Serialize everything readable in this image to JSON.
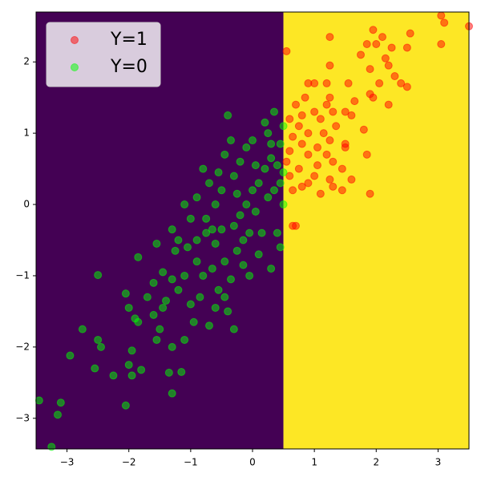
{
  "chart_data": {
    "type": "scatter",
    "decision_boundary": 0.5,
    "region_colors": [
      "#440154",
      "#fde725"
    ],
    "xlim": [
      -3.5,
      3.5
    ],
    "ylim": [
      -3.43,
      2.7
    ],
    "xticks": [
      {
        "value": -3,
        "label": "−3"
      },
      {
        "value": -2,
        "label": "−2"
      },
      {
        "value": -1,
        "label": "−1"
      },
      0,
      1,
      2,
      3
    ],
    "yticks": [
      {
        "value": -3,
        "label": "−3"
      },
      {
        "value": -2,
        "label": "−2"
      },
      {
        "value": -1,
        "label": "−1"
      },
      0,
      1,
      2
    ],
    "legend": "upper left",
    "alpha": 0.5,
    "series": [
      {
        "name": "Y=1",
        "color": "#ff0000",
        "x": [
          3.05,
          3.1,
          3.5,
          2.55,
          1.95,
          2.1,
          1.25,
          0.55,
          1.85,
          2.0,
          2.25,
          2.5,
          3.05,
          2.15,
          2.2,
          1.9,
          1.75,
          1.25,
          2.3,
          2.05,
          2.4,
          2.5,
          1.0,
          1.2,
          0.9,
          1.55,
          1.9,
          1.95,
          2.2,
          1.25,
          0.85,
          1.65,
          0.7,
          1.2,
          1.0,
          1.3,
          1.5,
          0.8,
          1.1,
          1.6,
          0.6,
          0.75,
          1.35,
          1.8,
          0.9,
          1.15,
          0.65,
          1.25,
          1.5,
          0.8,
          1.05,
          1.5,
          0.6,
          0.9,
          1.2,
          1.85,
          0.55,
          1.05,
          1.3,
          0.75,
          1.45,
          0.6,
          1.0,
          1.25,
          0.9,
          1.6,
          0.65,
          1.3,
          1.45,
          1.9,
          0.8,
          0.7,
          0.65,
          1.1
        ],
        "values": [
          2.65,
          2.55,
          2.5,
          2.4,
          2.45,
          2.35,
          2.35,
          2.15,
          2.25,
          2.25,
          2.2,
          2.2,
          2.25,
          2.05,
          1.95,
          1.9,
          2.1,
          1.95,
          1.8,
          1.7,
          1.7,
          1.65,
          1.7,
          1.7,
          1.7,
          1.7,
          1.55,
          1.5,
          1.4,
          1.5,
          1.5,
          1.45,
          1.4,
          1.4,
          1.3,
          1.3,
          1.3,
          1.25,
          1.2,
          1.25,
          1.2,
          1.1,
          1.1,
          1.05,
          1.0,
          1.0,
          0.95,
          0.9,
          0.85,
          0.85,
          0.8,
          0.8,
          0.75,
          0.7,
          0.7,
          0.7,
          0.6,
          0.55,
          0.6,
          0.5,
          0.5,
          0.4,
          0.4,
          0.35,
          0.3,
          0.35,
          0.2,
          0.25,
          0.2,
          0.15,
          0.25,
          -0.3,
          -0.3,
          0.15
        ]
      },
      {
        "name": "Y=0",
        "color": "#00ff00",
        "x": [
          -3.45,
          -3.25,
          -3.1,
          -3.15,
          -2.95,
          -2.75,
          -2.55,
          -2.5,
          -2.45,
          -2.5,
          -2.25,
          -2.05,
          -2.0,
          -1.95,
          -2.0,
          -2.05,
          -1.95,
          -1.9,
          -1.85,
          -1.8,
          -1.85,
          -1.7,
          -1.6,
          -1.55,
          -1.5,
          -1.45,
          -1.4,
          -1.3,
          -1.3,
          -1.35,
          -1.3,
          -1.25,
          -1.2,
          -1.15,
          -1.1,
          -1.1,
          -1.3,
          -1.0,
          -0.95,
          -0.9,
          -0.85,
          -0.8,
          -0.75,
          -0.7,
          -0.65,
          -0.6,
          -0.55,
          -0.5,
          -0.45,
          -0.4,
          -0.35,
          -0.3,
          -0.25,
          -0.2,
          -0.15,
          -0.1,
          -0.05,
          0.0,
          0.05,
          0.1,
          0.15,
          0.2,
          0.25,
          0.3,
          0.35,
          0.4,
          0.45,
          0.45,
          0.5,
          0.5,
          0.45,
          0.3,
          0.35,
          0.25,
          -0.1,
          -0.4,
          -0.45,
          -0.7,
          -0.8,
          -0.9,
          -1.0,
          -1.1,
          -0.6,
          -0.5,
          -0.3,
          -0.2,
          0.0,
          0.1,
          -0.05,
          -0.9,
          -1.05,
          -1.2,
          -0.75,
          -0.55,
          0.2,
          0.4,
          -0.25,
          -0.65,
          0.05,
          -0.35,
          -1.6,
          -1.55,
          -1.45,
          -0.6,
          -0.3,
          -0.45,
          -0.15,
          0.3,
          0.5
        ],
        "values": [
          -2.75,
          -3.4,
          -2.78,
          -2.95,
          -2.12,
          -1.75,
          -2.3,
          -1.9,
          -2.0,
          -0.99,
          -2.4,
          -2.82,
          -2.25,
          -2.4,
          -1.45,
          -1.25,
          -2.05,
          -1.6,
          -1.65,
          -2.32,
          -0.74,
          -1.3,
          -1.55,
          -1.9,
          -1.75,
          -1.45,
          -1.35,
          -2.65,
          -2.0,
          -2.36,
          -1.05,
          -0.65,
          -1.2,
          -2.35,
          -1.9,
          -1.0,
          -0.35,
          -1.4,
          -1.65,
          -0.8,
          -1.3,
          -1.0,
          -0.4,
          -1.7,
          -0.9,
          -0.55,
          -1.2,
          -0.35,
          -0.8,
          -1.5,
          -1.05,
          -0.3,
          -0.65,
          -0.15,
          -0.5,
          0.0,
          -0.4,
          0.2,
          -0.1,
          0.3,
          -0.4,
          0.5,
          0.1,
          0.65,
          0.2,
          -0.4,
          0.85,
          0.3,
          1.1,
          0.0,
          -0.6,
          -0.9,
          1.3,
          1.0,
          0.8,
          1.25,
          0.7,
          0.3,
          0.5,
          0.1,
          -0.2,
          0.0,
          0.0,
          0.2,
          0.4,
          0.6,
          0.9,
          -0.7,
          -1.0,
          -0.5,
          -0.6,
          -0.5,
          -0.2,
          0.45,
          1.15,
          0.55,
          0.15,
          -0.35,
          0.55,
          0.9,
          -1.1,
          -0.55,
          -0.95,
          -1.45,
          -1.75,
          -1.3,
          -0.85,
          0.85,
          0.45
        ]
      }
    ]
  }
}
